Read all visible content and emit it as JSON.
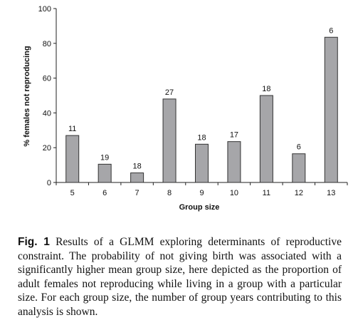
{
  "chart_data": {
    "type": "bar",
    "categories": [
      "5",
      "6",
      "7",
      "8",
      "9",
      "10",
      "11",
      "12",
      "13"
    ],
    "values": [
      27,
      10.5,
      5.5,
      48,
      22,
      23.5,
      50,
      16.5,
      83.5
    ],
    "bar_labels": [
      "11",
      "19",
      "18",
      "27",
      "18",
      "17",
      "18",
      "6",
      "6"
    ],
    "xlabel": "Group size",
    "ylabel": "% females not reproducing",
    "ylim": [
      0,
      100
    ],
    "yticks": [
      "0",
      "20",
      "40",
      "60",
      "80",
      "100"
    ],
    "bar_color": "#a6a6a9",
    "grid": false
  },
  "caption": {
    "label": "Fig. 1",
    "text": "Results of a GLMM exploring determinants of reproductive constraint. The probability of not giving birth was associated with a significantly higher mean group size, here depicted as the proportion of adult females not reproducing while living in a group with a particular size. For each group size, the number of group years contributing to this analysis is shown."
  }
}
